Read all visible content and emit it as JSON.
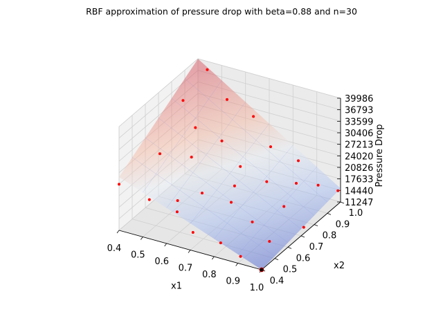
{
  "chart_data": {
    "type": "surface3d",
    "title": "RBF approximation of pressure drop with beta=0.88 and n=30",
    "xlabel": "x1",
    "ylabel": "x2",
    "zlabel": "Pressure Drop",
    "xlim": [
      0.4,
      1.0
    ],
    "ylim": [
      0.4,
      1.0
    ],
    "zlim": [
      11247,
      39986
    ],
    "x_ticks": [
      "0.4",
      "0.5",
      "0.6",
      "0.7",
      "0.8",
      "0.9",
      "1.0"
    ],
    "y_ticks": [
      "0.4",
      "0.5",
      "0.6",
      "0.7",
      "0.8",
      "0.9",
      "1.0"
    ],
    "z_ticks": [
      "11247",
      "14440",
      "17633",
      "20826",
      "24020",
      "27213",
      "30406",
      "33599",
      "36793",
      "39986"
    ],
    "grid": true,
    "colormap": "coolwarm",
    "surface_corners": [
      {
        "x1": 0.4,
        "x2": 0.4,
        "z": 26000
      },
      {
        "x1": 1.0,
        "x2": 0.4,
        "z": 11247
      },
      {
        "x1": 1.0,
        "x2": 1.0,
        "z": 15000
      },
      {
        "x1": 0.4,
        "x2": 1.0,
        "z": 39986
      }
    ],
    "sample_points": {
      "color": "#ff0000",
      "points": [
        [
          0.4,
          0.4,
          24000
        ],
        [
          0.5,
          0.45,
          20000
        ],
        [
          0.6,
          0.48,
          17500
        ],
        [
          0.7,
          0.42,
          15500
        ],
        [
          0.8,
          0.45,
          13500
        ],
        [
          0.9,
          0.42,
          12500
        ],
        [
          1.0,
          0.4,
          11247
        ],
        [
          0.45,
          0.62,
          26500
        ],
        [
          0.55,
          0.68,
          25500
        ],
        [
          0.65,
          0.58,
          20500
        ],
        [
          0.75,
          0.62,
          18500
        ],
        [
          0.85,
          0.6,
          15500
        ],
        [
          0.95,
          0.55,
          13500
        ],
        [
          0.42,
          0.85,
          33500
        ],
        [
          0.5,
          0.8,
          29000
        ],
        [
          0.6,
          0.82,
          26500
        ],
        [
          0.7,
          0.78,
          22500
        ],
        [
          0.8,
          0.8,
          19500
        ],
        [
          0.9,
          0.75,
          16000
        ],
        [
          1.0,
          0.72,
          13000
        ],
        [
          0.45,
          0.98,
          38500
        ],
        [
          0.55,
          0.95,
          33000
        ],
        [
          0.65,
          0.97,
          29500
        ],
        [
          0.75,
          0.92,
          24500
        ],
        [
          0.85,
          0.95,
          21500
        ],
        [
          0.95,
          0.92,
          17500
        ],
        [
          1.0,
          0.98,
          15000
        ],
        [
          0.58,
          0.52,
          19000
        ],
        [
          0.72,
          0.7,
          20000
        ],
        [
          0.88,
          0.88,
          18000
        ]
      ]
    },
    "highlight_point": {
      "x1": 1.0,
      "x2": 0.4,
      "z": 11247,
      "color": "#000000"
    }
  }
}
